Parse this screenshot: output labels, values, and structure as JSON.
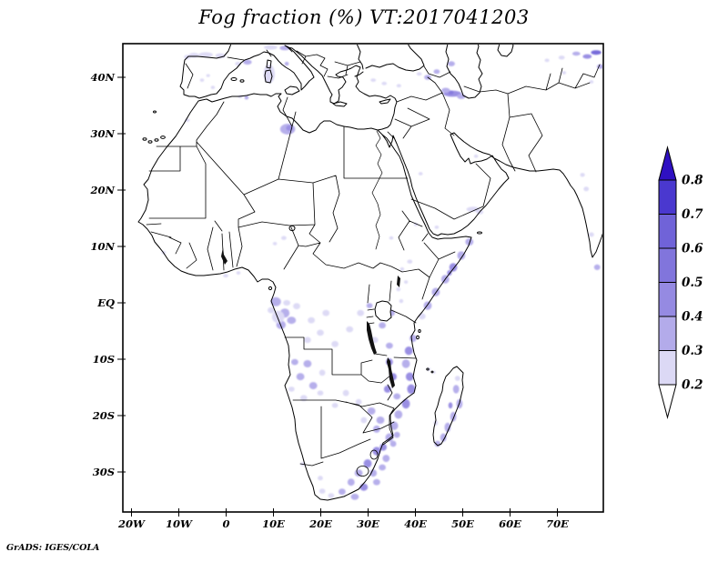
{
  "title": "Fog fraction (%) VT:2017041203",
  "credit": "GrADS: IGES/COLA",
  "chart_data": {
    "type": "map-contour",
    "title": "Fog fraction (%) VT:2017041203",
    "variable": "Fog fraction (%)",
    "valid_time": "2017041203",
    "map_region": {
      "lon_min": -22,
      "lon_max": 80,
      "lat_min": -37,
      "lat_max": 46,
      "grid": false
    },
    "x_ticks": [
      {
        "lon": -20,
        "label": "20W"
      },
      {
        "lon": -10,
        "label": "10W"
      },
      {
        "lon": 0,
        "label": "0"
      },
      {
        "lon": 10,
        "label": "10E"
      },
      {
        "lon": 20,
        "label": "20E"
      },
      {
        "lon": 30,
        "label": "30E"
      },
      {
        "lon": 40,
        "label": "40E"
      },
      {
        "lon": 50,
        "label": "50E"
      },
      {
        "lon": 60,
        "label": "60E"
      },
      {
        "lon": 70,
        "label": "70E"
      }
    ],
    "y_ticks": [
      {
        "lat": 40,
        "label": "40N"
      },
      {
        "lat": 30,
        "label": "30N"
      },
      {
        "lat": 20,
        "label": "20N"
      },
      {
        "lat": 10,
        "label": "10N"
      },
      {
        "lat": 0,
        "label": "EQ"
      },
      {
        "lat": -10,
        "label": "10S"
      },
      {
        "lat": -20,
        "label": "20S"
      },
      {
        "lat": -30,
        "label": "30S"
      }
    ],
    "colorbar": {
      "labels": [
        "0.2",
        "0.3",
        "0.4",
        "0.5",
        "0.6",
        "0.7",
        "0.8"
      ],
      "levels": [
        0.2,
        0.3,
        0.4,
        0.5,
        0.6,
        0.7,
        0.8
      ],
      "band_colors": [
        "#dcd9f5",
        "#b3abea",
        "#958ae2",
        "#8175dc",
        "#7063d8",
        "#4a38cf"
      ],
      "over_color": "#2f10c2",
      "under_color": "#ffffff",
      "position": "right"
    },
    "fog_points_format": [
      "lon",
      "lat",
      "width_deg",
      "height_deg",
      "level_band_1to6"
    ],
    "fog_points": [
      [
        -6.8,
        43.9,
        2.2,
        0.9,
        1
      ],
      [
        -4.3,
        44.0,
        3.0,
        0.9,
        1
      ],
      [
        -1.2,
        43.8,
        2.2,
        0.9,
        1
      ],
      [
        -8.2,
        43.6,
        1.4,
        0.8,
        1
      ],
      [
        4.5,
        42.7,
        1.8,
        0.9,
        2
      ],
      [
        2.5,
        42.4,
        1.2,
        0.7,
        1
      ],
      [
        -5.1,
        39.5,
        0.9,
        0.6,
        1
      ],
      [
        -2.8,
        38.2,
        0.9,
        0.6,
        1
      ],
      [
        -3.8,
        40.3,
        0.8,
        0.5,
        1
      ],
      [
        9.4,
        45.3,
        2.8,
        0.8,
        1
      ],
      [
        12.4,
        45.2,
        2.2,
        0.8,
        2
      ],
      [
        9.0,
        40.4,
        1.5,
        2.4,
        3
      ],
      [
        9.1,
        40.6,
        2.4,
        3.4,
        1
      ],
      [
        12.8,
        42.4,
        0.9,
        0.7,
        2
      ],
      [
        4.3,
        36.4,
        0.9,
        0.7,
        2
      ],
      [
        3.0,
        36.6,
        1.0,
        0.6,
        1
      ],
      [
        13.0,
        30.8,
        3.2,
        1.9,
        2
      ],
      [
        13.4,
        31.0,
        1.5,
        1.0,
        3
      ],
      [
        -8.2,
        32.4,
        1.0,
        0.6,
        1
      ],
      [
        31.1,
        39.5,
        1.1,
        0.6,
        1
      ],
      [
        33.4,
        38.9,
        1.1,
        0.6,
        1
      ],
      [
        36.5,
        38.5,
        1.0,
        0.6,
        1
      ],
      [
        42.6,
        40.0,
        1.5,
        0.9,
        2
      ],
      [
        44.5,
        41.0,
        1.3,
        0.8,
        2
      ],
      [
        40.8,
        40.6,
        1.1,
        0.6,
        1
      ],
      [
        47.8,
        37.1,
        3.8,
        1.1,
        3
      ],
      [
        47.5,
        37.3,
        1.2,
        0.7,
        4
      ],
      [
        46.4,
        37.7,
        1.8,
        0.9,
        2
      ],
      [
        49.7,
        36.6,
        1.8,
        0.9,
        2
      ],
      [
        47.6,
        42.4,
        1.5,
        0.9,
        2
      ],
      [
        78.2,
        44.4,
        2.2,
        0.8,
        5
      ],
      [
        76.3,
        43.7,
        1.9,
        0.8,
        3
      ],
      [
        79.1,
        41.9,
        1.5,
        0.8,
        2
      ],
      [
        74.0,
        44.2,
        1.7,
        0.7,
        2
      ],
      [
        70.9,
        43.5,
        1.3,
        0.7,
        1
      ],
      [
        77.2,
        39.2,
        0.9,
        0.6,
        1
      ],
      [
        71.4,
        40.8,
        0.9,
        0.6,
        1
      ],
      [
        67.8,
        43.0,
        1.0,
        0.6,
        1
      ],
      [
        41.1,
        22.9,
        0.9,
        0.6,
        1
      ],
      [
        52.2,
        16.6,
        2.8,
        0.9,
        1
      ],
      [
        53.6,
        16.1,
        1.5,
        0.8,
        1
      ],
      [
        52.8,
        26.0,
        0.9,
        0.6,
        1
      ],
      [
        44.5,
        13.4,
        0.9,
        0.6,
        1
      ],
      [
        76.1,
        20.2,
        1.1,
        0.8,
        1
      ],
      [
        77.2,
        12.1,
        1.1,
        0.8,
        1
      ],
      [
        78.4,
        6.3,
        1.3,
        1.0,
        2
      ],
      [
        75.3,
        22.7,
        1.0,
        0.7,
        1
      ],
      [
        51.4,
        10.8,
        1.7,
        1.3,
        2
      ],
      [
        49.7,
        8.4,
        1.7,
        1.5,
        2
      ],
      [
        48.0,
        6.3,
        1.7,
        1.5,
        3
      ],
      [
        47.2,
        5.3,
        1.0,
        1.0,
        3
      ],
      [
        46.3,
        4.2,
        1.7,
        1.5,
        2
      ],
      [
        44.3,
        1.9,
        1.7,
        1.5,
        2
      ],
      [
        42.6,
        -0.5,
        1.7,
        1.5,
        2
      ],
      [
        41.4,
        -2.4,
        1.5,
        1.1,
        1
      ],
      [
        38.8,
        7.3,
        1.1,
        0.7,
        1
      ],
      [
        37.2,
        6.0,
        0.9,
        0.6,
        1
      ],
      [
        34.9,
        11.5,
        0.9,
        0.6,
        1
      ],
      [
        40.1,
        13.9,
        0.9,
        0.6,
        1
      ],
      [
        12.2,
        11.5,
        1.1,
        0.7,
        1
      ],
      [
        10.3,
        10.5,
        0.9,
        0.6,
        1
      ],
      [
        -0.1,
        4.8,
        1.1,
        0.6,
        1
      ],
      [
        2.6,
        5.3,
        0.9,
        0.6,
        1
      ],
      [
        -13.2,
        8.9,
        0.9,
        0.6,
        1
      ],
      [
        10.5,
        0.2,
        2.2,
        1.6,
        2
      ],
      [
        12.4,
        -1.8,
        2.0,
        1.6,
        2
      ],
      [
        11.6,
        -3.9,
        2.0,
        1.5,
        2
      ],
      [
        13.8,
        -3.1,
        1.9,
        1.3,
        2
      ],
      [
        9.5,
        -1.3,
        1.5,
        1.1,
        1
      ],
      [
        14.9,
        -0.6,
        1.5,
        1.1,
        1
      ],
      [
        12.8,
        0.0,
        1.5,
        1.0,
        1
      ],
      [
        11.0,
        -2.5,
        2.6,
        2.2,
        1
      ],
      [
        18.0,
        -3.1,
        1.5,
        1.1,
        1
      ],
      [
        21.1,
        -1.8,
        1.5,
        1.1,
        1
      ],
      [
        19.9,
        -5.3,
        1.5,
        1.1,
        1
      ],
      [
        17.2,
        -6.6,
        1.5,
        1.1,
        1
      ],
      [
        23.0,
        -7.3,
        1.5,
        1.1,
        1
      ],
      [
        26.1,
        -4.7,
        1.5,
        1.1,
        1
      ],
      [
        28.4,
        -1.8,
        1.5,
        1.1,
        1
      ],
      [
        30.3,
        -0.5,
        1.3,
        0.9,
        2
      ],
      [
        34.9,
        -1.8,
        1.5,
        1.1,
        2
      ],
      [
        37.0,
        0.3,
        0.9,
        0.7,
        1
      ],
      [
        33.0,
        -4.0,
        1.5,
        1.1,
        2
      ],
      [
        31.4,
        -6.6,
        1.5,
        1.1,
        1
      ],
      [
        34.5,
        -7.6,
        1.5,
        1.1,
        2
      ],
      [
        36.4,
        2.4,
        0.9,
        0.7,
        1
      ],
      [
        38.0,
        3.7,
        0.8,
        0.6,
        1
      ],
      [
        32.2,
        -1.1,
        1.1,
        0.8,
        1
      ],
      [
        17.2,
        -10.8,
        1.7,
        1.3,
        2
      ],
      [
        15.7,
        -13.1,
        1.7,
        1.3,
        2
      ],
      [
        18.4,
        -14.7,
        1.7,
        1.3,
        2
      ],
      [
        16.4,
        -16.9,
        1.5,
        1.1,
        1
      ],
      [
        20.3,
        -12.4,
        1.3,
        1.1,
        1
      ],
      [
        14.5,
        -10.5,
        1.5,
        1.1,
        2
      ],
      [
        13.8,
        -15.3,
        1.3,
        0.9,
        1
      ],
      [
        19.9,
        -16.0,
        1.3,
        0.9,
        1
      ],
      [
        39.5,
        -6.3,
        1.5,
        1.3,
        2
      ],
      [
        38.6,
        -8.5,
        1.7,
        1.5,
        3
      ],
      [
        38.0,
        -10.8,
        1.7,
        1.5,
        2
      ],
      [
        38.8,
        -13.1,
        1.7,
        1.5,
        3
      ],
      [
        39.1,
        -15.3,
        1.7,
        1.7,
        3
      ],
      [
        38.0,
        -17.9,
        1.7,
        1.7,
        3
      ],
      [
        36.4,
        -19.8,
        1.7,
        1.5,
        2
      ],
      [
        35.5,
        -21.8,
        1.7,
        1.5,
        2
      ],
      [
        34.5,
        -23.9,
        1.7,
        1.5,
        2
      ],
      [
        33.2,
        -25.6,
        1.5,
        1.3,
        3
      ],
      [
        34.5,
        -10.5,
        1.5,
        1.3,
        3
      ],
      [
        35.3,
        -13.1,
        1.5,
        1.3,
        3
      ],
      [
        34.1,
        -15.3,
        1.5,
        1.3,
        3
      ],
      [
        36.1,
        -16.6,
        1.5,
        1.1,
        2
      ],
      [
        30.7,
        -19.2,
        1.7,
        1.3,
        2
      ],
      [
        32.6,
        -20.8,
        1.7,
        1.3,
        2
      ],
      [
        29.1,
        -20.8,
        1.3,
        1.1,
        1
      ],
      [
        31.8,
        -22.4,
        1.5,
        1.3,
        2
      ],
      [
        25.3,
        -16.0,
        1.3,
        1.1,
        1
      ],
      [
        28.0,
        -17.6,
        1.3,
        1.1,
        1
      ],
      [
        23.0,
        -18.2,
        1.3,
        0.9,
        1
      ],
      [
        31.8,
        -26.3,
        1.7,
        1.5,
        3
      ],
      [
        33.8,
        -27.6,
        1.5,
        1.3,
        2
      ],
      [
        29.9,
        -28.5,
        1.7,
        1.5,
        3
      ],
      [
        28.0,
        -30.2,
        1.7,
        1.3,
        2
      ],
      [
        31.1,
        -30.2,
        1.5,
        1.3,
        2
      ],
      [
        33.0,
        -29.2,
        1.5,
        1.1,
        2
      ],
      [
        26.4,
        -31.8,
        1.5,
        1.3,
        2
      ],
      [
        29.1,
        -32.7,
        1.7,
        1.3,
        3
      ],
      [
        31.8,
        -31.8,
        1.5,
        1.1,
        2
      ],
      [
        24.5,
        -33.5,
        1.5,
        1.1,
        2
      ],
      [
        27.2,
        -34.4,
        1.7,
        1.1,
        2
      ],
      [
        22.2,
        -34.2,
        1.3,
        0.9,
        1
      ],
      [
        20.3,
        -33.4,
        1.3,
        0.9,
        1
      ],
      [
        19.9,
        -31.1,
        1.1,
        0.8,
        1
      ],
      [
        35.3,
        -25.0,
        1.3,
        1.1,
        2
      ],
      [
        36.1,
        -23.4,
        1.3,
        1.1,
        2
      ],
      [
        16.2,
        -28.6,
        1.0,
        0.7,
        1
      ],
      [
        48.6,
        -15.3,
        1.3,
        1.5,
        2
      ],
      [
        49.3,
        -17.9,
        1.3,
        1.7,
        2
      ],
      [
        48.0,
        -20.2,
        1.3,
        1.7,
        2
      ],
      [
        47.4,
        -18.2,
        0.9,
        1.1,
        3
      ],
      [
        46.8,
        -22.1,
        1.3,
        1.7,
        2
      ],
      [
        45.9,
        -23.9,
        1.3,
        1.5,
        2
      ],
      [
        44.7,
        -25.0,
        1.3,
        1.1,
        2
      ],
      [
        48.9,
        -13.4,
        1.1,
        0.9,
        1
      ],
      [
        44.3,
        -21.3,
        0.9,
        0.9,
        1
      ],
      [
        42.8,
        -11.8,
        0.8,
        0.6,
        1
      ],
      [
        43.9,
        -12.3,
        0.7,
        0.5,
        1
      ]
    ]
  }
}
